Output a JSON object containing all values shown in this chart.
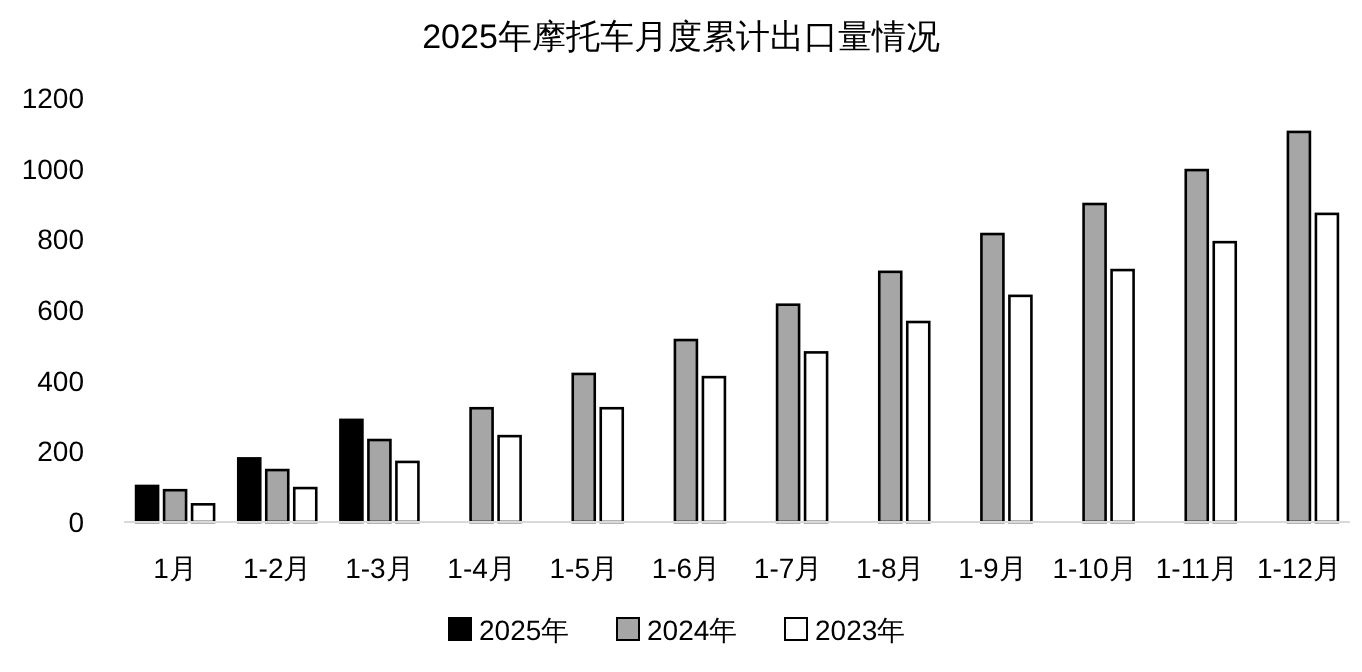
{
  "chart_data": {
    "type": "bar",
    "title": "2025年摩托车月度累计出口量情况",
    "categories": [
      "1月",
      "1-2月",
      "1-3月",
      "1-4月",
      "1-5月",
      "1-6月",
      "1-7月",
      "1-8月",
      "1-9月",
      "1-10月",
      "1-11月",
      "1-12月"
    ],
    "series": [
      {
        "name": "2025年",
        "color": "#000000",
        "values": [
          102,
          180,
          289,
          null,
          null,
          null,
          null,
          null,
          null,
          null,
          null,
          null
        ]
      },
      {
        "name": "2024年",
        "color": "#a6a6a6",
        "values": [
          90,
          147,
          232,
          322,
          419,
          515,
          615,
          708,
          815,
          900,
          996,
          1104
        ]
      },
      {
        "name": "2023年",
        "color": "#ffffff",
        "values": [
          50,
          96,
          170,
          243,
          322,
          410,
          480,
          566,
          640,
          713,
          792,
          872
        ]
      }
    ],
    "ylim": [
      0,
      1200
    ],
    "yticks": [
      0,
      200,
      400,
      600,
      800,
      1000,
      1200
    ],
    "grid": false,
    "legend": "bottom"
  }
}
